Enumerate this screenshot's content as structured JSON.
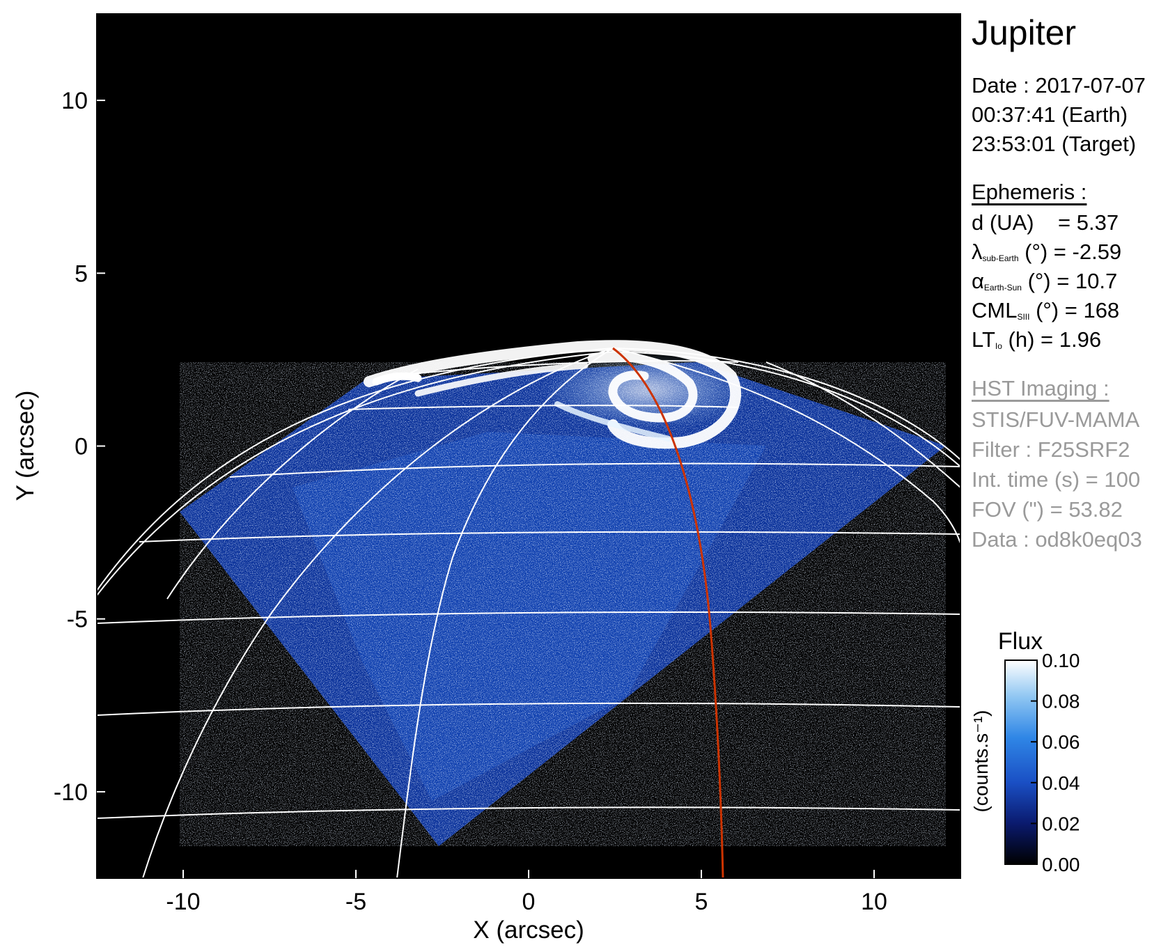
{
  "chart_data": {
    "type": "heatmap",
    "title": "Jupiter",
    "xlabel": "X (arcsec)",
    "ylabel": "Y (arcsec)",
    "xlim": [
      -12.5,
      12.5
    ],
    "ylim": [
      -12.5,
      12.5
    ],
    "x_ticks": [
      -10,
      -5,
      0,
      5,
      10
    ],
    "y_ticks": [
      -10,
      -5,
      0,
      5,
      10
    ],
    "x_tick_labels": [
      "-10",
      "-5",
      "0",
      "5",
      "10"
    ],
    "y_tick_labels": [
      "-10",
      "-5",
      "0",
      "5",
      "10"
    ],
    "grid": "white latitude/longitude planetary grid",
    "overlay_line_color": "#cc3300",
    "colorbar": {
      "title": "Flux",
      "unit": "(counts.s⁻¹)",
      "range": [
        0.0,
        0.1
      ],
      "tick_labels": [
        "0.10",
        "0.08",
        "0.06",
        "0.04",
        "0.02",
        "0.00"
      ],
      "colors": [
        "#000000",
        "#0a1a6e",
        "#1a4fc4",
        "#2f86e6",
        "#8fc6f2",
        "#ffffff"
      ]
    }
  },
  "info": {
    "date": "Date : 2017-07-07",
    "time_earth": "00:37:41 (Earth)",
    "time_target": "23:53:01 (Target)",
    "ephemeris_header": "Ephemeris :",
    "eph": [
      {
        "sym": "d (UA)",
        "sub": "",
        "rest": "    = 5.37"
      },
      {
        "sym": "λ",
        "sub": "sub-Earth",
        "rest": " (°) = -2.59"
      },
      {
        "sym": "α",
        "sub": "Earth-Sun",
        "rest": " (°) = 10.7"
      },
      {
        "sym": "CML",
        "sub": "SIII",
        "rest": " (°) = 168"
      },
      {
        "sym": "LT",
        "sub": "Io",
        "rest": " (h) = 1.96"
      }
    ],
    "hst_header": "HST Imaging :",
    "hst": [
      "STIS/FUV-MAMA",
      "Filter : F25SRF2",
      "Int. time (s) = 100",
      "FOV (\") = 53.82",
      "Data : od8k0eq03"
    ]
  }
}
